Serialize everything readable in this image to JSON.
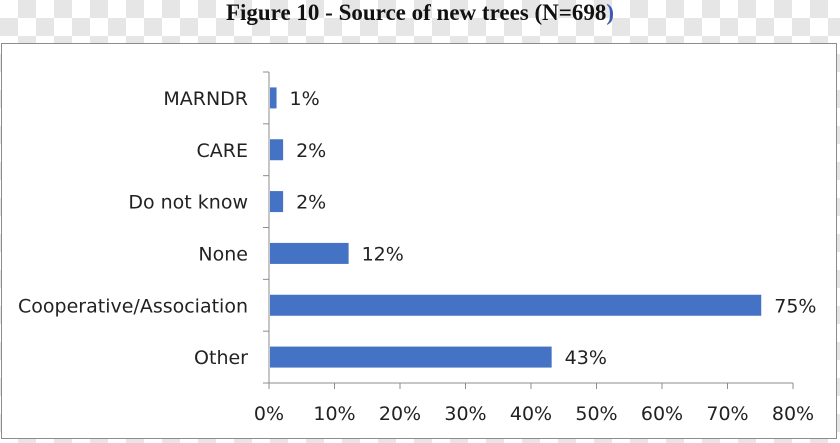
{
  "title": {
    "text": "Figure 10 -  Source of new trees (N=698",
    "close_paren": ")"
  },
  "chart_data": {
    "type": "bar",
    "orientation": "horizontal",
    "categories": [
      "MARNDR",
      "CARE",
      "Do not know",
      "None",
      "Cooperative/Association",
      "Other"
    ],
    "values": [
      1,
      2,
      2,
      12,
      75,
      43
    ],
    "value_labels": [
      "1%",
      "2%",
      "2%",
      "12%",
      "75%",
      "43%"
    ],
    "xlim": [
      0,
      80
    ],
    "xticks": [
      0,
      10,
      20,
      30,
      40,
      50,
      60,
      70,
      80
    ],
    "xtick_labels": [
      "0%",
      "10%",
      "20%",
      "30%",
      "40%",
      "50%",
      "60%",
      "70%",
      "80%"
    ],
    "bar_color": "#4472c4",
    "grid": false,
    "legend": "none"
  }
}
